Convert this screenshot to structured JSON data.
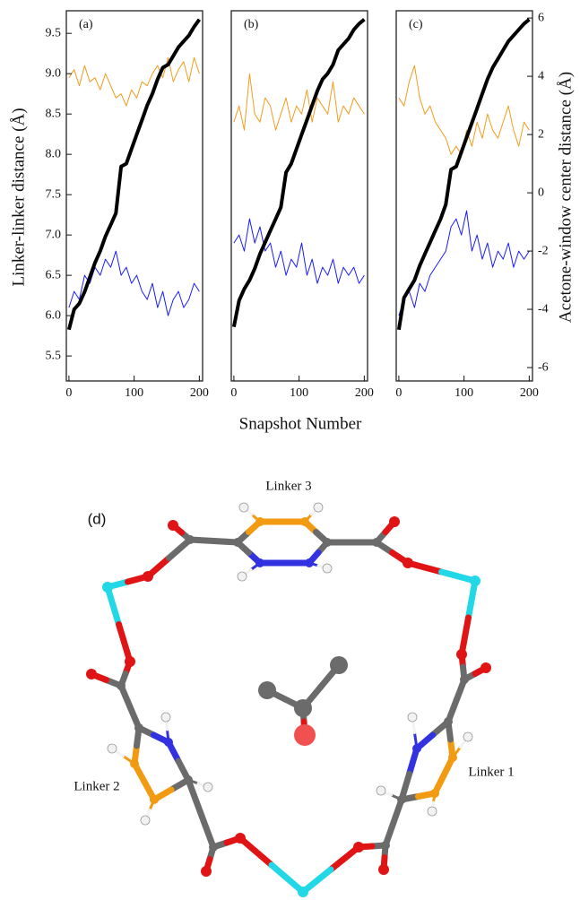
{
  "chart_data": [
    {
      "type": "line",
      "title": "(a)",
      "ylabel": "Linker-linker distance (Å)",
      "x": [
        0,
        8,
        16,
        24,
        32,
        40,
        48,
        56,
        64,
        72,
        80,
        88,
        96,
        104,
        112,
        120,
        128,
        136,
        144,
        152,
        160,
        168,
        176,
        184,
        192,
        200
      ],
      "xlim": [
        -4,
        205
      ],
      "xticks": [
        0,
        100,
        200
      ],
      "ylim": [
        5.19,
        9.78
      ],
      "yticks": [
        5.5,
        {
          "value": 6.0,
          "label": "6.0"
        },
        6.5,
        {
          "value": 7.0,
          "label": "7.0"
        },
        7.5,
        {
          "value": 8.0,
          "label": "8.0"
        },
        8.5,
        {
          "value": 9.0,
          "label": "9.0"
        },
        9.5
      ],
      "y2lim": [
        -6.46,
        6.25
      ],
      "series": [
        {
          "color": "#f39c1f",
          "values": [
            8.95,
            9.05,
            8.85,
            9.1,
            8.9,
            8.95,
            8.8,
            9.0,
            8.85,
            8.7,
            8.75,
            8.6,
            8.8,
            8.7,
            8.9,
            8.85,
            9.0,
            9.1,
            8.95,
            9.2,
            8.9,
            9.05,
            9.15,
            8.9,
            9.2,
            9.0
          ]
        },
        {
          "color": "#1a1aff",
          "values": [
            6.1,
            6.3,
            6.2,
            6.5,
            6.4,
            6.6,
            6.5,
            6.7,
            6.6,
            6.8,
            6.5,
            6.6,
            6.4,
            6.5,
            6.3,
            6.2,
            6.4,
            6.1,
            6.3,
            6.0,
            6.2,
            6.3,
            6.1,
            6.2,
            6.4,
            6.3
          ]
        },
        {
          "color": "#000000",
          "axis": "y2",
          "values": [
            -4.7,
            -4.0,
            -3.8,
            -3.4,
            -2.9,
            -2.4,
            -2.0,
            -1.5,
            -1.1,
            -0.7,
            0.9,
            1.0,
            1.5,
            2.0,
            2.5,
            3.0,
            3.4,
            3.9,
            4.3,
            4.4,
            4.7,
            5.0,
            5.2,
            5.4,
            5.7,
            5.95
          ]
        }
      ]
    },
    {
      "type": "line",
      "title": "(b)",
      "xlabel": "Snapshot Number",
      "x": [
        0,
        8,
        16,
        24,
        32,
        40,
        48,
        56,
        64,
        72,
        80,
        88,
        96,
        104,
        112,
        120,
        128,
        136,
        144,
        152,
        160,
        168,
        176,
        184,
        192,
        200
      ],
      "xlim": [
        -4,
        205
      ],
      "xticks": [
        0,
        100,
        200
      ],
      "ylim": [
        5.19,
        9.78
      ],
      "y2lim": [
        -6.46,
        6.25
      ],
      "series": [
        {
          "color": "#f39c1f",
          "values": [
            8.4,
            8.6,
            8.3,
            9.0,
            8.5,
            8.4,
            8.7,
            8.6,
            8.3,
            8.5,
            8.7,
            8.4,
            8.6,
            8.5,
            8.8,
            8.4,
            8.7,
            8.6,
            8.5,
            8.9,
            8.4,
            8.6,
            8.5,
            8.7,
            8.6,
            8.5
          ]
        },
        {
          "color": "#1a1aff",
          "values": [
            6.9,
            7.0,
            6.8,
            7.2,
            6.9,
            7.1,
            6.8,
            6.9,
            6.6,
            6.8,
            6.5,
            6.7,
            6.6,
            6.9,
            6.5,
            6.7,
            6.4,
            6.6,
            6.5,
            6.7,
            6.4,
            6.6,
            6.5,
            6.6,
            6.4,
            6.5
          ]
        },
        {
          "color": "#000000",
          "axis": "y2",
          "values": [
            -4.6,
            -3.7,
            -3.3,
            -3.0,
            -2.6,
            -2.1,
            -1.7,
            -1.3,
            -0.9,
            -0.5,
            0.7,
            1.0,
            1.5,
            2.0,
            2.5,
            3.0,
            3.5,
            3.9,
            4.1,
            4.4,
            4.9,
            5.1,
            5.3,
            5.6,
            5.8,
            5.95
          ]
        }
      ]
    },
    {
      "type": "line",
      "title": "(c)",
      "y2label": "Acetone-window center distance (Å)",
      "x": [
        0,
        8,
        16,
        24,
        32,
        40,
        48,
        56,
        64,
        72,
        80,
        88,
        96,
        104,
        112,
        120,
        128,
        136,
        144,
        152,
        160,
        168,
        176,
        184,
        192,
        200
      ],
      "xlim": [
        -4,
        205
      ],
      "xticks": [
        0,
        100,
        200
      ],
      "ylim": [
        5.19,
        9.78
      ],
      "y2lim": [
        -6.46,
        6.25
      ],
      "y2ticks": [
        6,
        4,
        2,
        0,
        -2,
        -4,
        -6
      ],
      "series": [
        {
          "color": "#f39c1f",
          "values": [
            8.7,
            8.6,
            8.9,
            9.1,
            8.7,
            8.5,
            8.6,
            8.4,
            8.3,
            8.2,
            8.0,
            8.1,
            8.0,
            8.3,
            8.1,
            8.4,
            8.2,
            8.5,
            8.3,
            8.2,
            8.4,
            8.6,
            8.3,
            8.1,
            8.4,
            8.3
          ]
        },
        {
          "color": "#1a1aff",
          "values": [
            6.0,
            6.2,
            6.3,
            6.1,
            6.4,
            6.3,
            6.5,
            6.6,
            6.7,
            6.8,
            7.1,
            7.2,
            7.0,
            7.3,
            6.8,
            7.0,
            6.7,
            6.9,
            6.6,
            6.8,
            6.7,
            6.9,
            6.6,
            6.8,
            6.7,
            6.8
          ]
        },
        {
          "color": "#000000",
          "axis": "y2",
          "values": [
            -4.7,
            -3.6,
            -3.3,
            -3.0,
            -2.5,
            -2.1,
            -1.7,
            -1.3,
            -0.9,
            -0.4,
            0.8,
            0.9,
            1.4,
            1.9,
            2.4,
            2.9,
            3.4,
            3.9,
            4.3,
            4.6,
            4.9,
            5.2,
            5.4,
            5.6,
            5.8,
            5.95
          ]
        }
      ]
    }
  ],
  "diagram": {
    "label": "(d)",
    "linker_top": "Linker 3",
    "linker_left": "Linker 2",
    "linker_right": "Linker 1"
  }
}
